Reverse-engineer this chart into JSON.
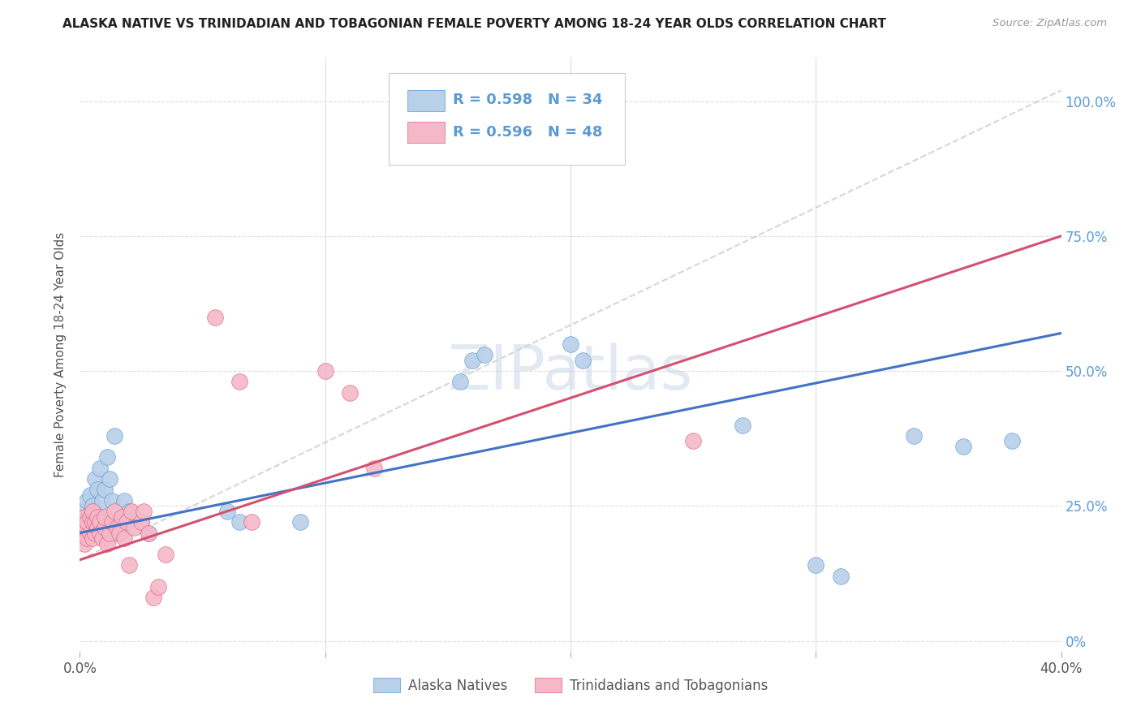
{
  "title": "ALASKA NATIVE VS TRINIDADIAN AND TOBAGONIAN FEMALE POVERTY AMONG 18-24 YEAR OLDS CORRELATION CHART",
  "source": "Source: ZipAtlas.com",
  "ylabel": "Female Poverty Among 18-24 Year Olds",
  "ytick_values": [
    0.0,
    0.25,
    0.5,
    0.75,
    1.0
  ],
  "ytick_labels": [
    "0%",
    "25.0%",
    "50.0%",
    "75.0%",
    "100.0%"
  ],
  "xlim": [
    0.0,
    0.4
  ],
  "ylim": [
    -0.02,
    1.08
  ],
  "watermark": "ZIPatlas",
  "blue_R": 0.598,
  "blue_N": 34,
  "pink_R": 0.596,
  "pink_N": 48,
  "blue_color": "#b8d0e8",
  "pink_color": "#f5b8c8",
  "blue_edge_color": "#5b9bd5",
  "pink_edge_color": "#e06080",
  "blue_line_color": "#4472c4",
  "pink_line_color": "#d45070",
  "ref_line_color": "#cccccc",
  "legend_label_blue": "Alaska Natives",
  "legend_label_pink": "Trinidadians and Tobagonians",
  "grid_color": "#dddddd",
  "blue_points": [
    [
      0.001,
      0.22
    ],
    [
      0.002,
      0.24
    ],
    [
      0.003,
      0.26
    ],
    [
      0.004,
      0.27
    ],
    [
      0.005,
      0.25
    ],
    [
      0.006,
      0.3
    ],
    [
      0.007,
      0.28
    ],
    [
      0.008,
      0.32
    ],
    [
      0.009,
      0.26
    ],
    [
      0.01,
      0.28
    ],
    [
      0.011,
      0.34
    ],
    [
      0.012,
      0.3
    ],
    [
      0.013,
      0.26
    ],
    [
      0.014,
      0.38
    ],
    [
      0.015,
      0.22
    ],
    [
      0.016,
      0.2
    ],
    [
      0.018,
      0.26
    ],
    [
      0.02,
      0.24
    ],
    [
      0.025,
      0.22
    ],
    [
      0.028,
      0.2
    ],
    [
      0.06,
      0.24
    ],
    [
      0.065,
      0.22
    ],
    [
      0.09,
      0.22
    ],
    [
      0.155,
      0.48
    ],
    [
      0.16,
      0.52
    ],
    [
      0.165,
      0.53
    ],
    [
      0.2,
      0.55
    ],
    [
      0.205,
      0.52
    ],
    [
      0.27,
      0.4
    ],
    [
      0.3,
      0.14
    ],
    [
      0.31,
      0.12
    ],
    [
      0.34,
      0.38
    ],
    [
      0.36,
      0.36
    ],
    [
      0.38,
      0.37
    ]
  ],
  "pink_points": [
    [
      0.001,
      0.2
    ],
    [
      0.001,
      0.22
    ],
    [
      0.002,
      0.18
    ],
    [
      0.002,
      0.21
    ],
    [
      0.002,
      0.23
    ],
    [
      0.003,
      0.19
    ],
    [
      0.003,
      0.21
    ],
    [
      0.003,
      0.22
    ],
    [
      0.004,
      0.2
    ],
    [
      0.004,
      0.23
    ],
    [
      0.005,
      0.19
    ],
    [
      0.005,
      0.22
    ],
    [
      0.005,
      0.24
    ],
    [
      0.006,
      0.2
    ],
    [
      0.006,
      0.22
    ],
    [
      0.007,
      0.21
    ],
    [
      0.007,
      0.23
    ],
    [
      0.008,
      0.22
    ],
    [
      0.008,
      0.2
    ],
    [
      0.009,
      0.19
    ],
    [
      0.01,
      0.21
    ],
    [
      0.01,
      0.23
    ],
    [
      0.011,
      0.18
    ],
    [
      0.012,
      0.2
    ],
    [
      0.013,
      0.22
    ],
    [
      0.014,
      0.24
    ],
    [
      0.015,
      0.21
    ],
    [
      0.016,
      0.2
    ],
    [
      0.017,
      0.23
    ],
    [
      0.018,
      0.19
    ],
    [
      0.019,
      0.22
    ],
    [
      0.02,
      0.14
    ],
    [
      0.021,
      0.24
    ],
    [
      0.022,
      0.21
    ],
    [
      0.025,
      0.22
    ],
    [
      0.026,
      0.24
    ],
    [
      0.028,
      0.2
    ],
    [
      0.03,
      0.08
    ],
    [
      0.032,
      0.1
    ],
    [
      0.035,
      0.16
    ],
    [
      0.055,
      0.6
    ],
    [
      0.065,
      0.48
    ],
    [
      0.07,
      0.22
    ],
    [
      0.1,
      0.5
    ],
    [
      0.11,
      0.46
    ],
    [
      0.12,
      0.32
    ],
    [
      0.15,
      1.0
    ],
    [
      0.25,
      0.37
    ]
  ]
}
